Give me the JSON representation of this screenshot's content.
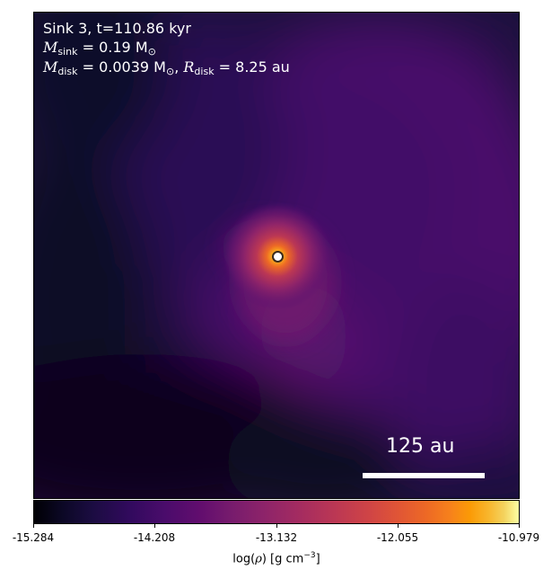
{
  "info": {
    "line1": "Sink 3, t=110.86 kyr",
    "msink_symbol": "M",
    "msink_sub": "sink",
    "msink_value": " = 0.19 M",
    "msink_unit_sub": "⊙",
    "mdisk_symbol": "M",
    "mdisk_sub": "disk",
    "mdisk_value": " = 0.0039 M",
    "mdisk_unit_sub": "⊙",
    "rdisk_sep": ", ",
    "rdisk_symbol": "R",
    "rdisk_sub": "disk",
    "rdisk_value": " = 8.25 au"
  },
  "scale_bar": {
    "label": "125 au"
  },
  "colorbar": {
    "colormap": "inferno",
    "ticks": [
      "-15.284",
      "-14.208",
      "-13.132",
      "-12.055",
      "-10.979"
    ],
    "min": -15.284,
    "max": -10.979,
    "title_prefix": "log(",
    "title_rho": "ρ",
    "title_mid": ") [g cm",
    "title_exp": "−3",
    "title_suffix": "]"
  }
}
